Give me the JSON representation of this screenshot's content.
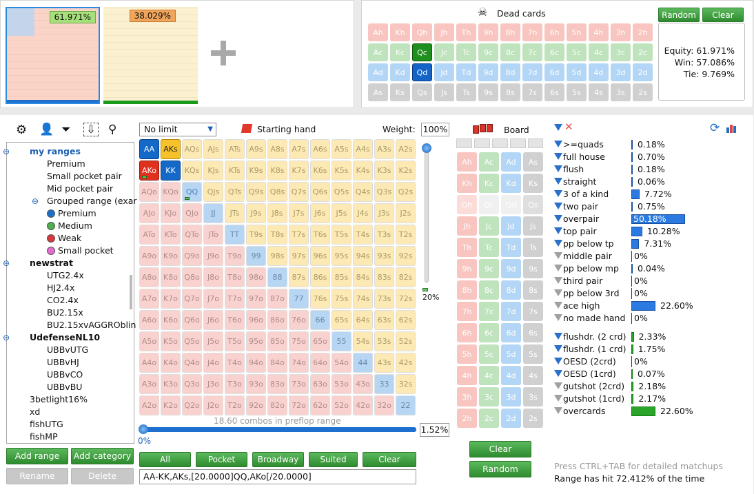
{
  "top": {
    "range1_pct": "61.971%",
    "range2_pct": "38.029%",
    "dead_cards_title": "Dead cards",
    "random_label": "Random",
    "clear_label": "Clear",
    "dead_rows": [
      {
        "suit": "h",
        "cards": [
          "Ah",
          "Kh",
          "Qh",
          "Jh",
          "Th",
          "9h",
          "8h",
          "7h",
          "6h",
          "5h",
          "4h",
          "3h",
          "2h"
        ]
      },
      {
        "suit": "c",
        "cards": [
          "Ac",
          "Kc",
          "Qc",
          "Jc",
          "Tc",
          "9c",
          "8c",
          "7c",
          "6c",
          "5c",
          "4c",
          "3c",
          "2c"
        ]
      },
      {
        "suit": "d",
        "cards": [
          "Ad",
          "Kd",
          "Qd",
          "Jd",
          "Td",
          "9d",
          "8d",
          "7d",
          "6d",
          "5d",
          "4d",
          "3d",
          "2d"
        ]
      },
      {
        "suit": "s",
        "cards": [
          "As",
          "Ks",
          "Qs",
          "Js",
          "Ts",
          "9s",
          "8s",
          "7s",
          "6s",
          "5s",
          "4s",
          "3s",
          "2s"
        ]
      }
    ],
    "equity": "Equity: 61.971%",
    "win": "Win: 57.086%",
    "tie": "Tie: 9.769%"
  },
  "left": {
    "tree": [
      {
        "text": "my ranges",
        "level": 0,
        "bold": true,
        "blue": true,
        "toggle": "-"
      },
      {
        "text": "Premium",
        "level": 1
      },
      {
        "text": "Small pocket pair",
        "level": 1
      },
      {
        "text": "Mid pocket pair",
        "level": 1
      },
      {
        "text": "Grouped range (exar",
        "level": 1,
        "toggle": "-"
      },
      {
        "text": "Premium",
        "level": 2,
        "dot": "#1a70c8"
      },
      {
        "text": "Medium",
        "level": 2,
        "dot": "#4caf50"
      },
      {
        "text": "Weak",
        "level": 2,
        "dot": "#d9363e"
      },
      {
        "text": "Small pocket",
        "level": 2,
        "dot": "#e86ad0"
      },
      {
        "text": "newstrat",
        "level": 0,
        "bold": true,
        "toggle": "-"
      },
      {
        "text": "UTG2.4x",
        "level": 1
      },
      {
        "text": "HJ2.4x",
        "level": 1
      },
      {
        "text": "CO2.4x",
        "level": 1
      },
      {
        "text": "BU2.15x",
        "level": 1
      },
      {
        "text": "BU2.15xvAGGROblin",
        "level": 1
      },
      {
        "text": "UdefenseNL10",
        "level": 0,
        "bold": true,
        "toggle": "-"
      },
      {
        "text": "UBBvUTG",
        "level": 1
      },
      {
        "text": "UBBvHJ",
        "level": 1
      },
      {
        "text": "UBBvCO",
        "level": 1
      },
      {
        "text": "UBBvBU",
        "level": 1
      },
      {
        "text": "3betlight16%",
        "level": 0
      },
      {
        "text": "xd",
        "level": 0
      },
      {
        "text": "fishUTG",
        "level": 0
      },
      {
        "text": "fishMP",
        "level": 0
      }
    ],
    "add_range": "Add range",
    "add_category": "Add category",
    "rename": "Rename",
    "delete": "Delete"
  },
  "matrix": {
    "game": "No limit",
    "starting_hand": "Starting hand",
    "weight_label": "Weight:",
    "weight_value": "100%",
    "slider_pct": "20%",
    "combos": "18.60 combos in preflop range",
    "bottom_left": "0%",
    "bottom_right": "1.52%",
    "buttons": [
      "All",
      "Pocket",
      "Broadway",
      "Suited",
      "Clear"
    ],
    "range_text": "AA-KK,AKs,[20.0000]QQ,AKo[/20.0000]"
  },
  "board": {
    "title": "Board",
    "cards": [
      [
        "Ah",
        "Ac",
        "Ad",
        "As"
      ],
      [
        "Kh",
        "Kc",
        "Kd",
        "Ks"
      ],
      [
        "Qh",
        "Qc",
        "Qd",
        "Qs"
      ],
      [
        "Jh",
        "Jc",
        "Jd",
        "Js"
      ],
      [
        "Th",
        "Tc",
        "Td",
        "Ts"
      ],
      [
        "9h",
        "9c",
        "9d",
        "9s"
      ],
      [
        "8h",
        "8c",
        "8d",
        "8s"
      ],
      [
        "7h",
        "7c",
        "7d",
        "7s"
      ],
      [
        "6h",
        "6c",
        "6d",
        "6s"
      ],
      [
        "5h",
        "5c",
        "5d",
        "5s"
      ],
      [
        "4h",
        "4c",
        "4d",
        "4s"
      ],
      [
        "3h",
        "3c",
        "3d",
        "3s"
      ],
      [
        "2h",
        "2c",
        "2d",
        "2s"
      ]
    ],
    "clear": "Clear",
    "random": "Random"
  },
  "stats": {
    "made": [
      {
        "label": ">=quads",
        "val": "0.18%",
        "pct": 0.18,
        "on": true
      },
      {
        "label": "full house",
        "val": "0.70%",
        "pct": 0.7,
        "on": true
      },
      {
        "label": "flush",
        "val": "0.18%",
        "pct": 0.18,
        "on": true
      },
      {
        "label": "straight",
        "val": "0.06%",
        "pct": 0.06,
        "on": true
      },
      {
        "label": "3 of a kind",
        "val": "7.72%",
        "pct": 7.72,
        "on": true
      },
      {
        "label": "two pair",
        "val": "0.75%",
        "pct": 0.75,
        "on": true
      },
      {
        "label": "overpair",
        "val": "50.18%",
        "pct": 50.18,
        "on": true
      },
      {
        "label": "top pair",
        "val": "10.28%",
        "pct": 10.28,
        "on": true
      },
      {
        "label": "pp below tp",
        "val": "7.31%",
        "pct": 7.31,
        "on": true
      },
      {
        "label": "middle pair",
        "val": "0%",
        "pct": 0,
        "on": false
      },
      {
        "label": "pp below mp",
        "val": "0.04%",
        "pct": 0.04,
        "on": false
      },
      {
        "label": "third pair",
        "val": "0%",
        "pct": 0,
        "on": false
      },
      {
        "label": "pp below 3rd",
        "val": "0%",
        "pct": 0,
        "on": false
      },
      {
        "label": "ace high",
        "val": "22.60%",
        "pct": 22.6,
        "on": false
      },
      {
        "label": "no made hand",
        "val": "0%",
        "pct": 0,
        "on": false
      }
    ],
    "draws": [
      {
        "label": "flushdr. (2 crd)",
        "val": "2.33%",
        "pct": 2.33,
        "on": true
      },
      {
        "label": "flushdr. (1 crd)",
        "val": "1.75%",
        "pct": 1.75,
        "on": true
      },
      {
        "label": "OESD (2crd)",
        "val": "0%",
        "pct": 0,
        "on": true
      },
      {
        "label": "OESD (1crd)",
        "val": "0.07%",
        "pct": 0.07,
        "on": true
      },
      {
        "label": "gutshot (2crd)",
        "val": "2.18%",
        "pct": 2.18,
        "on": false
      },
      {
        "label": "gutshot (1crd)",
        "val": "2.17%",
        "pct": 2.17,
        "on": false
      },
      {
        "label": "overcards",
        "val": "22.60%",
        "pct": 22.6,
        "on": false
      }
    ],
    "hint": "Press CTRL+TAB for detailed matchups",
    "hit": "Range has hit 72.412% of the time"
  }
}
